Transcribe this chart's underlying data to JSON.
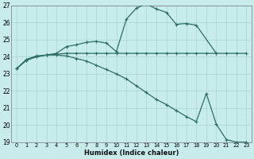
{
  "xlabel": "Humidex (Indice chaleur)",
  "bg_color": "#c8ecec",
  "line_color": "#2d6e63",
  "grid_color": "#aad4d4",
  "xlim": [
    -0.5,
    23.5
  ],
  "ylim": [
    19,
    27
  ],
  "yticks": [
    19,
    20,
    21,
    22,
    23,
    24,
    25,
    26,
    27
  ],
  "xticks": [
    0,
    1,
    2,
    3,
    4,
    5,
    6,
    7,
    8,
    9,
    10,
    11,
    12,
    13,
    14,
    15,
    16,
    17,
    18,
    19,
    20,
    21,
    22,
    23
  ],
  "hours": [
    0,
    1,
    2,
    3,
    4,
    5,
    6,
    7,
    8,
    9,
    10,
    11,
    12,
    13,
    14,
    15,
    16,
    17,
    18,
    19,
    20,
    21,
    22,
    23
  ],
  "line1": [
    23.3,
    23.8,
    24.0,
    24.1,
    24.15,
    24.2,
    24.2,
    24.2,
    24.2,
    24.2,
    24.2,
    24.2,
    24.2,
    24.2,
    24.2,
    24.2,
    24.2,
    24.2,
    24.2,
    24.2,
    24.2,
    24.2,
    24.2,
    24.2
  ],
  "line2_x": [
    0,
    1,
    2,
    3,
    4,
    5,
    6,
    7,
    8,
    9,
    10,
    11,
    12,
    13,
    14,
    15,
    16,
    17,
    18,
    20
  ],
  "line2_y": [
    23.3,
    23.8,
    24.0,
    24.1,
    24.2,
    24.6,
    24.7,
    24.85,
    24.9,
    24.8,
    24.3,
    26.2,
    26.85,
    27.1,
    26.8,
    26.6,
    25.9,
    25.95,
    25.85,
    24.2
  ],
  "line3": [
    23.3,
    23.85,
    24.05,
    24.1,
    24.1,
    24.05,
    23.9,
    23.75,
    23.5,
    23.25,
    23.0,
    22.7,
    22.3,
    21.9,
    21.5,
    21.2,
    20.85,
    20.5,
    20.2,
    21.85,
    20.05,
    19.15,
    19.0,
    19.0
  ]
}
